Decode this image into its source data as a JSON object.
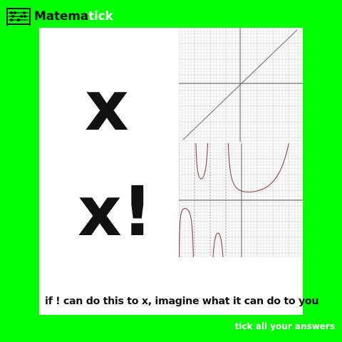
{
  "brand": {
    "name_dark": "Matema",
    "name_light": "tick",
    "logo_icon": "abacus-icon"
  },
  "meme": {
    "top_text": "x",
    "bottom_text": "x!",
    "caption": "if ! can do this to x, imagine what it can do to you"
  },
  "footer": {
    "tagline": "tick all your answers"
  },
  "colors": {
    "background": "#00ff00",
    "brand_light": "#ffffff",
    "curve": "#8a4a4a"
  }
}
